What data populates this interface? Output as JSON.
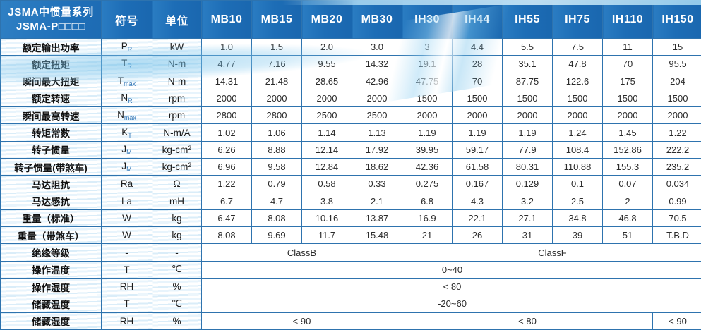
{
  "table": {
    "header": {
      "title_line1": "JSMA中惯量系列",
      "title_line2": "JSMA-P□□□□",
      "symbol_col": "符号",
      "unit_col": "单位",
      "models": [
        "MB10",
        "MB15",
        "MB20",
        "MB30",
        "IH30",
        "IH44",
        "IH55",
        "IH75",
        "IH110",
        "IH150"
      ]
    },
    "rows": [
      {
        "label": "额定输出功率",
        "symbol": "P",
        "sub": "R",
        "unit": "kW",
        "unit_sup": "",
        "values": [
          "1.0",
          "1.5",
          "2.0",
          "3.0",
          "3",
          "4.4",
          "5.5",
          "7.5",
          "11",
          "15"
        ]
      },
      {
        "label": "额定扭矩",
        "symbol": "T",
        "sub": "R",
        "unit": "N-m",
        "unit_sup": "",
        "values": [
          "4.77",
          "7.16",
          "9.55",
          "14.32",
          "19.1",
          "28",
          "35.1",
          "47.8",
          "70",
          "95.5"
        ]
      },
      {
        "label": "瞬间最大扭矩",
        "symbol": "T",
        "sub": "max",
        "unit": "N-m",
        "unit_sup": "",
        "values": [
          "14.31",
          "21.48",
          "28.65",
          "42.96",
          "47.75",
          "70",
          "87.75",
          "122.6",
          "175",
          "204"
        ]
      },
      {
        "label": "额定转速",
        "symbol": "N",
        "sub": "R",
        "unit": "rpm",
        "unit_sup": "",
        "values": [
          "2000",
          "2000",
          "2000",
          "2000",
          "1500",
          "1500",
          "1500",
          "1500",
          "1500",
          "1500"
        ]
      },
      {
        "label": "瞬间最高转速",
        "symbol": "N",
        "sub": "max",
        "unit": "rpm",
        "unit_sup": "",
        "values": [
          "2800",
          "2800",
          "2500",
          "2500",
          "2000",
          "2000",
          "2000",
          "2000",
          "2000",
          "2000"
        ]
      },
      {
        "label": "转矩常数",
        "symbol": "K",
        "sub": "T",
        "unit": "N-m/A",
        "unit_sup": "",
        "values": [
          "1.02",
          "1.06",
          "1.14",
          "1.13",
          "1.19",
          "1.19",
          "1.19",
          "1.24",
          "1.45",
          "1.22"
        ]
      },
      {
        "label": "转子惯量",
        "symbol": "J",
        "sub": "M",
        "unit": "kg-cm",
        "unit_sup": "2",
        "values": [
          "6.26",
          "8.88",
          "12.14",
          "17.92",
          "39.95",
          "59.17",
          "77.9",
          "108.4",
          "152.86",
          "222.2"
        ]
      },
      {
        "label": "转子惯量(带煞车)",
        "symbol": "J",
        "sub": "M",
        "unit": "kg-cm",
        "unit_sup": "2",
        "values": [
          "6.96",
          "9.58",
          "12.84",
          "18.62",
          "42.36",
          "61.58",
          "80.31",
          "110.88",
          "155.3",
          "235.2"
        ]
      },
      {
        "label": "马达阻抗",
        "symbol": "Ra",
        "sub": "",
        "unit": "Ω",
        "unit_sup": "",
        "values": [
          "1.22",
          "0.79",
          "0.58",
          "0.33",
          "0.275",
          "0.167",
          "0.129",
          "0.1",
          "0.07",
          "0.034"
        ]
      },
      {
        "label": "马达感抗",
        "symbol": "La",
        "sub": "",
        "unit": "mH",
        "unit_sup": "",
        "values": [
          "6.7",
          "4.7",
          "3.8",
          "2.1",
          "6.8",
          "4.3",
          "3.2",
          "2.5",
          "2",
          "0.99"
        ]
      },
      {
        "label": "重量（标准）",
        "symbol": "W",
        "sub": "",
        "unit": "kg",
        "unit_sup": "",
        "values": [
          "6.47",
          "8.08",
          "10.16",
          "13.87",
          "16.9",
          "22.1",
          "27.1",
          "34.8",
          "46.8",
          "70.5"
        ]
      },
      {
        "label": "重量（带煞车）",
        "symbol": "W",
        "sub": "",
        "unit": "kg",
        "unit_sup": "",
        "values": [
          "8.08",
          "9.69",
          "11.7",
          "15.48",
          "21",
          "26",
          "31",
          "39",
          "51",
          "T.B.D"
        ]
      }
    ],
    "span_rows": [
      {
        "label": "绝缘等级",
        "symbol": "-",
        "unit": "-",
        "unit_sup": "",
        "spans": [
          {
            "text": "ClassB",
            "cols": 4
          },
          {
            "text": "ClassF",
            "cols": 6
          }
        ]
      },
      {
        "label": "操作温度",
        "symbol": "T",
        "unit": "℃",
        "unit_sup": "",
        "spans": [
          {
            "text": "0~40",
            "cols": 10
          }
        ]
      },
      {
        "label": "操作湿度",
        "symbol": "RH",
        "unit": "%",
        "unit_sup": "",
        "spans": [
          {
            "text": "< 80",
            "cols": 10
          }
        ]
      },
      {
        "label": "储藏温度",
        "symbol": "T",
        "unit": "℃",
        "unit_sup": "",
        "spans": [
          {
            "text": "-20~60",
            "cols": 10
          }
        ]
      },
      {
        "label": "储藏湿度",
        "symbol": "RH",
        "unit": "%",
        "unit_sup": "",
        "spans": [
          {
            "text": "< 90",
            "cols": 4
          },
          {
            "text": "< 80",
            "cols": 5
          },
          {
            "text": "< 90",
            "cols": 1
          }
        ]
      }
    ],
    "colors": {
      "header_blue": "#1d6db6",
      "header_blue_light": "#2a7cc2",
      "grid_blue": "#2e73ae",
      "subscript_blue": "#2e74b5",
      "wave_blue": "#6ebee8",
      "header_text": "#ffffff",
      "body_text": "#2b2b2b"
    }
  }
}
